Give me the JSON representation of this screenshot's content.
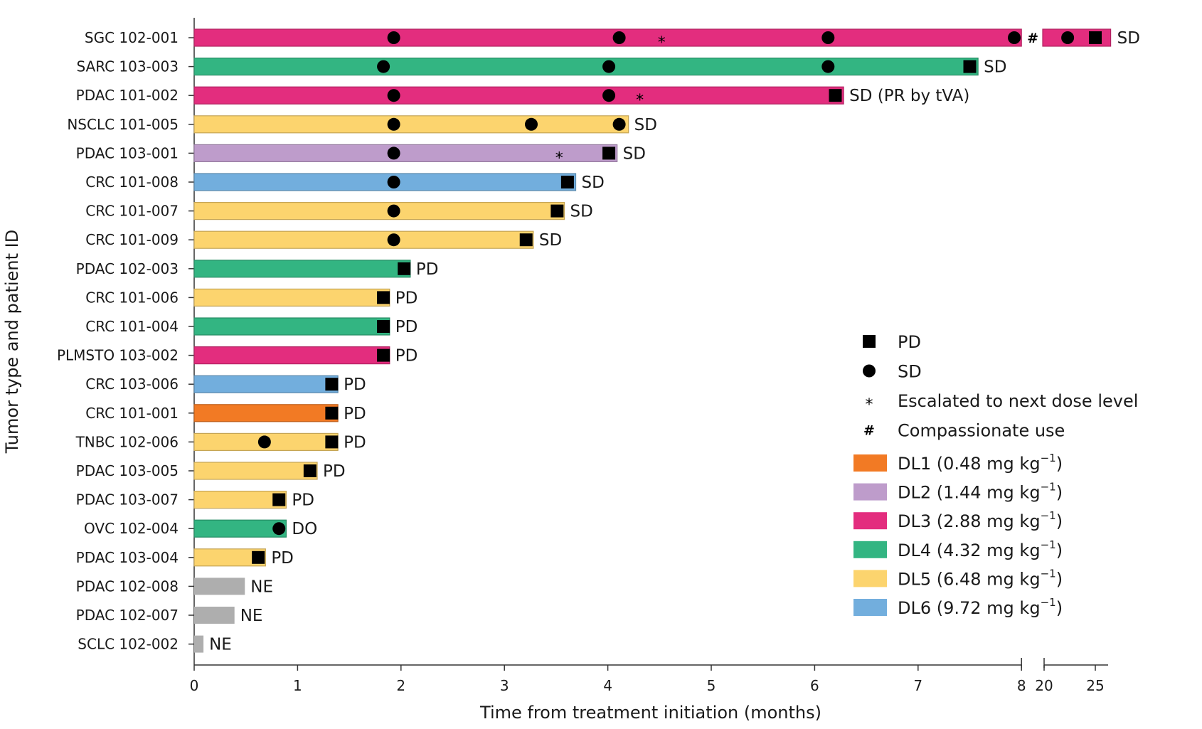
{
  "chart_data": {
    "type": "swimmer",
    "ylabel": "Tumor type and patient ID",
    "xlabel": "Time from treatment initiation (months)",
    "x_ticks": [
      "0",
      "1",
      "2",
      "3",
      "4",
      "5",
      "6",
      "7",
      "8",
      "20",
      "25"
    ],
    "x_break": {
      "segment1": [
        0,
        8
      ],
      "segment2": [
        20,
        25
      ]
    },
    "colors": {
      "DL1": "#F27A24",
      "DL2": "#BE9CCB",
      "DL3": "#E32D7E",
      "DL4": "#33B582",
      "DL5": "#FCD46E",
      "DL6": "#72AEDD",
      "NE": "#AEAEAE"
    },
    "patients": [
      {
        "id": "SGC 102-001",
        "dose": "DL3",
        "end": 8.0,
        "break_end": 26.5,
        "label": "SD",
        "sd": [
          1.93,
          4.11,
          6.13,
          7.93,
          22.3
        ],
        "pd": [
          25.0
        ],
        "esc": [
          4.52
        ],
        "compassionate": true
      },
      {
        "id": "SARC 103-003",
        "dose": "DL4",
        "end": 7.58,
        "label": "SD",
        "sd": [
          1.83,
          4.01,
          6.13
        ],
        "pd": [
          7.5
        ],
        "esc": []
      },
      {
        "id": "PDAC 101-002",
        "dose": "DL3",
        "end": 6.28,
        "label": "SD (PR by tVA)",
        "sd": [
          1.93,
          4.01
        ],
        "pd": [
          6.2
        ],
        "esc": [
          4.31
        ]
      },
      {
        "id": "NSCLC 101-005",
        "dose": "DL5",
        "end": 4.2,
        "label": "SD",
        "sd": [
          1.93,
          3.26,
          4.11
        ],
        "pd": [],
        "esc": []
      },
      {
        "id": "PDAC 103-001",
        "dose": "DL2",
        "end": 4.09,
        "label": "SD",
        "sd": [
          1.93
        ],
        "pd": [
          4.01
        ],
        "esc": [
          3.53
        ]
      },
      {
        "id": "CRC 101-008",
        "dose": "DL6",
        "end": 3.69,
        "label": "SD",
        "sd": [
          1.93
        ],
        "pd": [
          3.61
        ],
        "esc": []
      },
      {
        "id": "CRC 101-007",
        "dose": "DL5",
        "end": 3.58,
        "label": "SD",
        "sd": [
          1.93
        ],
        "pd": [
          3.51
        ],
        "esc": []
      },
      {
        "id": "CRC 101-009",
        "dose": "DL5",
        "end": 3.28,
        "label": "SD",
        "sd": [
          1.93
        ],
        "pd": [
          3.21
        ],
        "esc": []
      },
      {
        "id": "PDAC 102-003",
        "dose": "DL4",
        "end": 2.09,
        "label": "PD",
        "sd": [],
        "pd": [
          2.03
        ],
        "esc": []
      },
      {
        "id": "CRC 101-006",
        "dose": "DL5",
        "end": 1.89,
        "label": "PD",
        "sd": [],
        "pd": [
          1.83
        ],
        "esc": []
      },
      {
        "id": "CRC 101-004",
        "dose": "DL4",
        "end": 1.89,
        "label": "PD",
        "sd": [],
        "pd": [
          1.83
        ],
        "esc": []
      },
      {
        "id": "PLMSTO 103-002",
        "dose": "DL3",
        "end": 1.89,
        "label": "PD",
        "sd": [],
        "pd": [
          1.83
        ],
        "esc": []
      },
      {
        "id": "CRC 103-006",
        "dose": "DL6",
        "end": 1.39,
        "label": "PD",
        "sd": [],
        "pd": [
          1.33
        ],
        "esc": []
      },
      {
        "id": "CRC 101-001",
        "dose": "DL1",
        "end": 1.39,
        "label": "PD",
        "sd": [],
        "pd": [
          1.33
        ],
        "esc": []
      },
      {
        "id": "TNBC 102-006",
        "dose": "DL5",
        "end": 1.39,
        "label": "PD",
        "sd": [
          0.68
        ],
        "pd": [
          1.33
        ],
        "esc": []
      },
      {
        "id": "PDAC 103-005",
        "dose": "DL5",
        "end": 1.19,
        "label": "PD",
        "sd": [],
        "pd": [
          1.12
        ],
        "esc": []
      },
      {
        "id": "PDAC 103-007",
        "dose": "DL5",
        "end": 0.89,
        "label": "PD",
        "sd": [],
        "pd": [
          0.82
        ],
        "esc": []
      },
      {
        "id": "OVC 102-004",
        "dose": "DL4",
        "end": 0.89,
        "label": "DO",
        "sd": [
          0.82
        ],
        "pd": [],
        "esc": []
      },
      {
        "id": "PDAC 103-004",
        "dose": "DL5",
        "end": 0.69,
        "label": "PD",
        "sd": [],
        "pd": [
          0.62
        ],
        "esc": []
      },
      {
        "id": "PDAC 102-008",
        "dose": "NE",
        "end": 0.49,
        "label": "NE",
        "sd": [],
        "pd": [],
        "esc": []
      },
      {
        "id": "PDAC 102-007",
        "dose": "NE",
        "end": 0.39,
        "label": "NE",
        "sd": [],
        "pd": [],
        "esc": []
      },
      {
        "id": "SCLC 102-002",
        "dose": "NE",
        "end": 0.09,
        "label": "NE",
        "sd": [],
        "pd": [],
        "esc": []
      }
    ],
    "legend": {
      "symbols": [
        {
          "symbol": "square",
          "text": "PD"
        },
        {
          "symbol": "circle",
          "text": "SD"
        },
        {
          "symbol": "*",
          "text": "Escalated to next dose level"
        },
        {
          "symbol": "#",
          "text": "Compassionate use"
        }
      ],
      "doses": [
        {
          "key": "DL1",
          "text": "DL1 (0.48 mg kg",
          "sup": "−1",
          "close": ")"
        },
        {
          "key": "DL2",
          "text": "DL2 (1.44 mg kg",
          "sup": "−1",
          "close": ")"
        },
        {
          "key": "DL3",
          "text": "DL3 (2.88 mg kg",
          "sup": "−1",
          "close": ")"
        },
        {
          "key": "DL4",
          "text": "DL4 (4.32 mg kg",
          "sup": "−1",
          "close": ")"
        },
        {
          "key": "DL5",
          "text": "DL5 (6.48 mg kg",
          "sup": "−1",
          "close": ")"
        },
        {
          "key": "DL6",
          "text": "DL6 (9.72 mg kg",
          "sup": "−1",
          "close": ")"
        }
      ]
    }
  }
}
